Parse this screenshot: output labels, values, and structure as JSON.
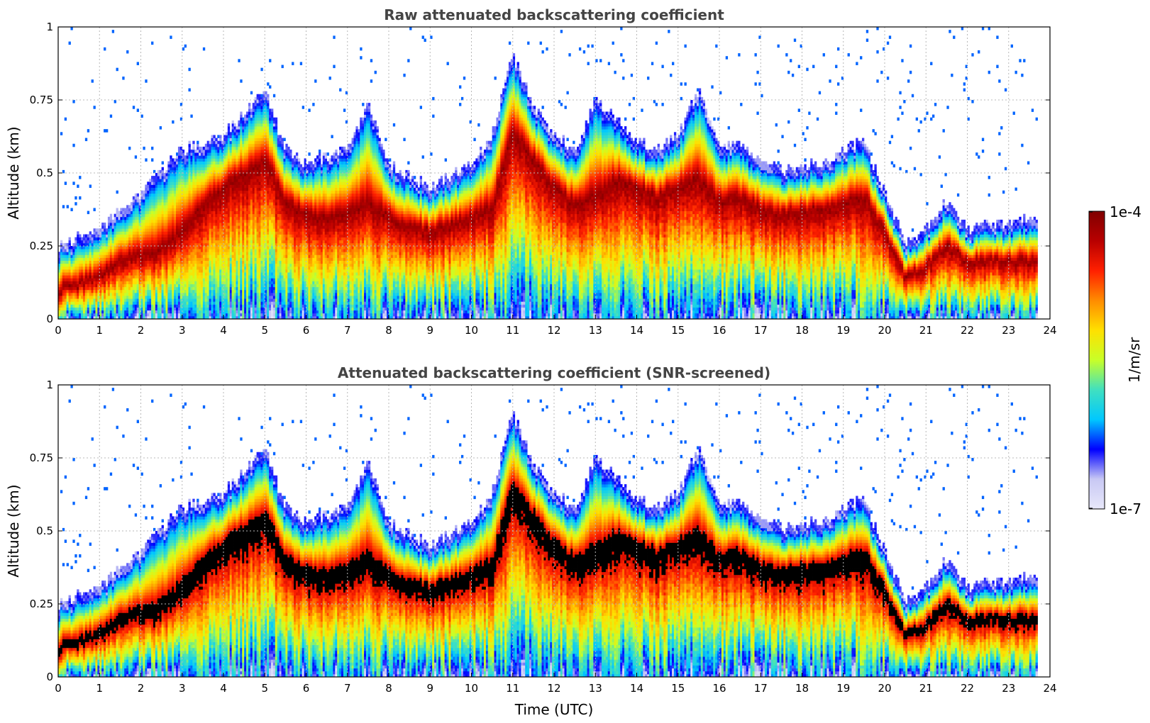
{
  "colors": {
    "colormap": [
      "#e8e8fa",
      "#c8c8f4",
      "#0000ff",
      "#00c8ff",
      "#40e0c0",
      "#c8ff28",
      "#ffe000",
      "#ff8c00",
      "#ff2000",
      "#b80000",
      "#800000"
    ],
    "screened_max": "#000000"
  },
  "chart_data": [
    {
      "type": "heatmap",
      "title": "Raw attenuated backscattering coefficient",
      "xlabel": "",
      "ylabel": "Altitude (km)",
      "xlim": [
        0,
        24
      ],
      "ylim": [
        0,
        1
      ],
      "xticks": [
        "0",
        "1",
        "2",
        "3",
        "4",
        "5",
        "6",
        "7",
        "8",
        "9",
        "10",
        "11",
        "12",
        "13",
        "14",
        "15",
        "16",
        "17",
        "18",
        "19",
        "20",
        "21",
        "22",
        "23",
        "24"
      ],
      "yticks": [
        "0",
        "0.25",
        "0.5",
        "0.75",
        "1"
      ],
      "grid": true,
      "data_end_time": 23.7,
      "layer_center_km": [
        [
          0,
          0.1
        ],
        [
          0.5,
          0.12
        ],
        [
          1,
          0.15
        ],
        [
          1.5,
          0.2
        ],
        [
          2,
          0.22
        ],
        [
          2.5,
          0.24
        ],
        [
          3,
          0.3
        ],
        [
          3.5,
          0.4
        ],
        [
          4,
          0.45
        ],
        [
          4.5,
          0.5
        ],
        [
          5,
          0.55
        ],
        [
          5.5,
          0.4
        ],
        [
          6,
          0.36
        ],
        [
          6.5,
          0.34
        ],
        [
          7,
          0.36
        ],
        [
          7.5,
          0.4
        ],
        [
          8,
          0.35
        ],
        [
          8.5,
          0.32
        ],
        [
          9,
          0.3
        ],
        [
          9.5,
          0.32
        ],
        [
          10,
          0.35
        ],
        [
          10.5,
          0.38
        ],
        [
          11,
          0.65
        ],
        [
          11.5,
          0.55
        ],
        [
          12,
          0.45
        ],
        [
          12.5,
          0.4
        ],
        [
          13,
          0.42
        ],
        [
          13.5,
          0.48
        ],
        [
          14,
          0.45
        ],
        [
          14.5,
          0.42
        ],
        [
          15,
          0.45
        ],
        [
          15.5,
          0.48
        ],
        [
          16,
          0.4
        ],
        [
          16.5,
          0.42
        ],
        [
          17,
          0.38
        ],
        [
          17.5,
          0.36
        ],
        [
          18,
          0.37
        ],
        [
          18.5,
          0.38
        ],
        [
          19,
          0.4
        ],
        [
          19.5,
          0.42
        ],
        [
          20,
          0.3
        ],
        [
          20.5,
          0.15
        ],
        [
          21,
          0.18
        ],
        [
          21.5,
          0.25
        ],
        [
          22,
          0.2
        ],
        [
          22.5,
          0.2
        ],
        [
          23,
          0.2
        ],
        [
          23.7,
          0.2
        ]
      ],
      "layer_top_km": [
        [
          0,
          0.22
        ],
        [
          1,
          0.28
        ],
        [
          2,
          0.4
        ],
        [
          3,
          0.55
        ],
        [
          4,
          0.6
        ],
        [
          5,
          0.75
        ],
        [
          5.5,
          0.55
        ],
        [
          6,
          0.5
        ],
        [
          7,
          0.55
        ],
        [
          7.5,
          0.7
        ],
        [
          8,
          0.5
        ],
        [
          9,
          0.42
        ],
        [
          10,
          0.5
        ],
        [
          10.5,
          0.6
        ],
        [
          11,
          0.88
        ],
        [
          11.5,
          0.7
        ],
        [
          12,
          0.6
        ],
        [
          12.5,
          0.55
        ],
        [
          13,
          0.72
        ],
        [
          13.5,
          0.66
        ],
        [
          14,
          0.58
        ],
        [
          14.5,
          0.55
        ],
        [
          15,
          0.6
        ],
        [
          15.5,
          0.75
        ],
        [
          16,
          0.55
        ],
        [
          16.5,
          0.58
        ],
        [
          17,
          0.5
        ],
        [
          17.5,
          0.48
        ],
        [
          18,
          0.5
        ],
        [
          18.5,
          0.5
        ],
        [
          19,
          0.55
        ],
        [
          19.5,
          0.58
        ],
        [
          20,
          0.4
        ],
        [
          20.5,
          0.23
        ],
        [
          21,
          0.28
        ],
        [
          21.5,
          0.38
        ],
        [
          22,
          0.28
        ],
        [
          22.5,
          0.3
        ],
        [
          23,
          0.3
        ],
        [
          23.7,
          0.32
        ]
      ]
    },
    {
      "type": "heatmap",
      "title": "Attenuated backscattering coefficient (SNR-screened)",
      "xlabel": "Time (UTC)",
      "ylabel": "Altitude (km)",
      "xlim": [
        0,
        24
      ],
      "ylim": [
        0,
        1
      ],
      "xticks": [
        "0",
        "1",
        "2",
        "3",
        "4",
        "5",
        "6",
        "7",
        "8",
        "9",
        "10",
        "11",
        "12",
        "13",
        "14",
        "15",
        "16",
        "17",
        "18",
        "19",
        "20",
        "21",
        "22",
        "23",
        "24"
      ],
      "yticks": [
        "0",
        "0.25",
        "0.5",
        "0.75",
        "1"
      ],
      "grid": true,
      "screened": true
    }
  ],
  "colorbar": {
    "label": "1/m/sr",
    "max_label": "1e-4",
    "min_label": "1e-7",
    "range": [
      1e-07,
      0.0001
    ],
    "scale": "log"
  }
}
